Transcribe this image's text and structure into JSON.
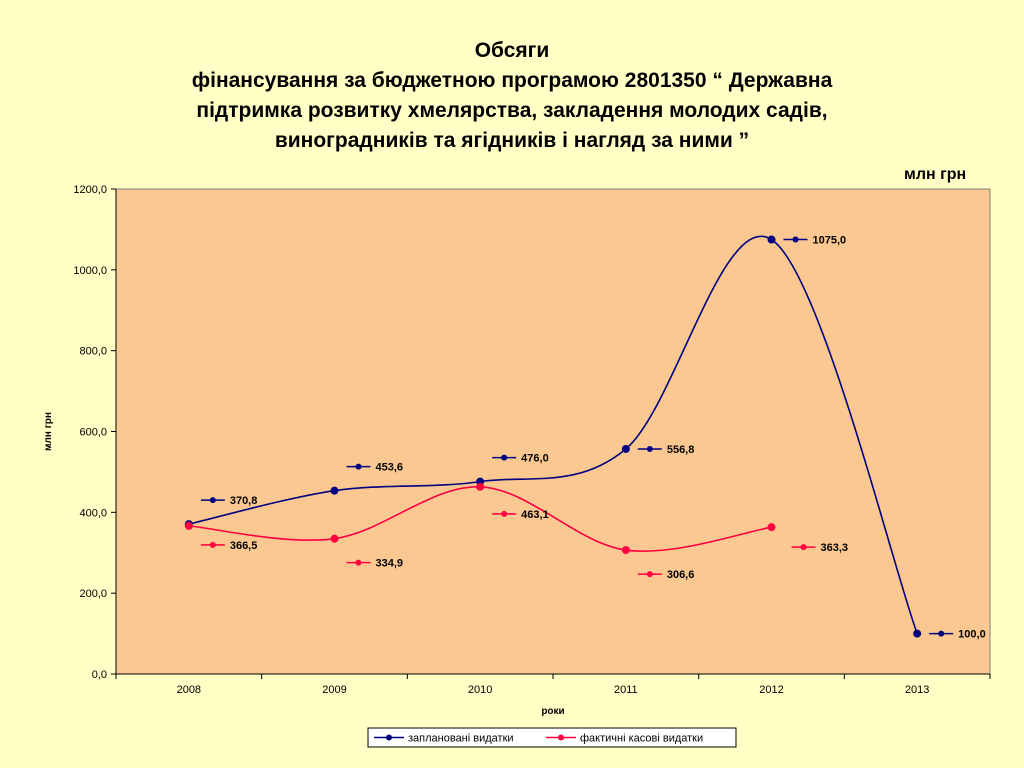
{
  "title_lines": [
    "Обсяги",
    "фінансування за бюджетною програмою 2801350 “ Державна",
    "підтримка розвитку хмелярства, закладення молодих садів,",
    "виноградників  та ягідників і нагляд за ними ”"
  ],
  "unit_label": "млн грн",
  "chart_data": {
    "type": "line",
    "categories": [
      "2008",
      "2009",
      "2010",
      "2011",
      "2012",
      "2013"
    ],
    "series": [
      {
        "name": "заплановані видатки",
        "color": "#000080",
        "values": [
          370.8,
          453.6,
          476.0,
          556.8,
          1075.0,
          100.0
        ],
        "labels": [
          "370,8",
          "453,6",
          "476,0",
          "556,8",
          "1075,0",
          "100,0"
        ]
      },
      {
        "name": "фактичні касові видатки",
        "color": "#ff0040",
        "values": [
          366.5,
          334.9,
          463.1,
          306.6,
          363.3,
          null
        ],
        "labels": [
          "366,5",
          "334,9",
          "463,1",
          "306,6",
          "363,3",
          ""
        ]
      }
    ],
    "ylim": [
      0,
      1200
    ],
    "yticks": [
      "0,0",
      "200,0",
      "400,0",
      "600,0",
      "800,0",
      "1000,0",
      "1200,0"
    ],
    "xlabel": "роки",
    "ylabel": "млн грн",
    "plot_background": "#fac890",
    "legend_position": "bottom-right",
    "smooth": true
  }
}
